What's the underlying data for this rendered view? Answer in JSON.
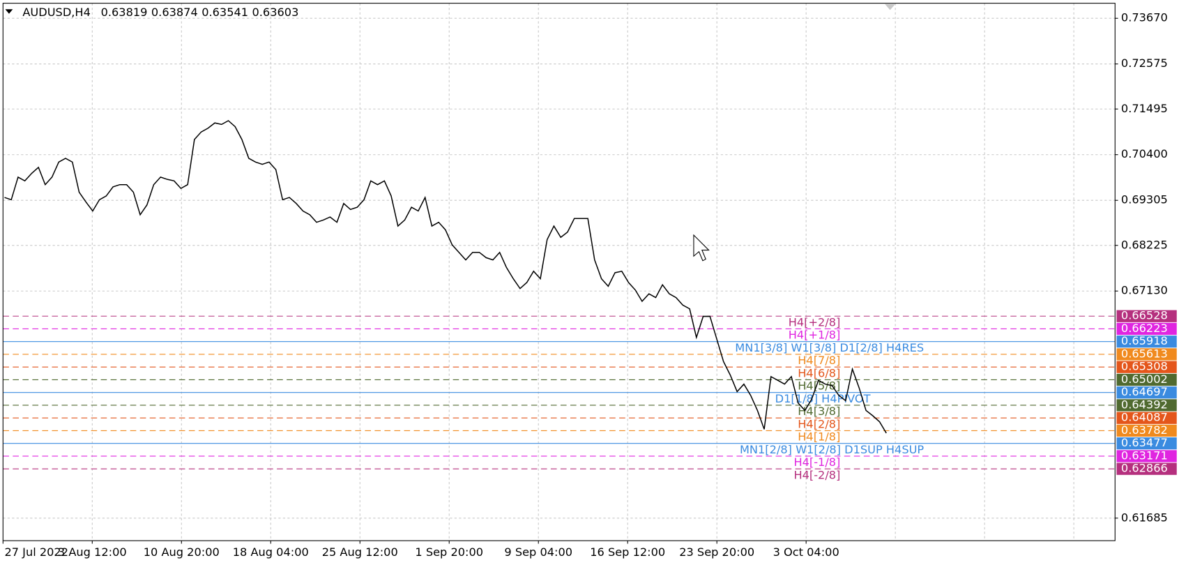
{
  "chart_data": {
    "type": "line",
    "symbol": "AUDUSD,H4",
    "ohlc": [
      0.63819,
      0.63874,
      0.63541,
      0.63603
    ],
    "color": "#000000",
    "values": [
      0.69374,
      0.6932,
      0.69861,
      0.69771,
      0.69952,
      0.70096,
      0.69681,
      0.69861,
      0.70222,
      0.70313,
      0.70222,
      0.695,
      0.69266,
      0.69049,
      0.6932,
      0.6941,
      0.69627,
      0.69681,
      0.69681,
      0.695,
      0.68959,
      0.69194,
      0.69681,
      0.69861,
      0.69807,
      0.69771,
      0.69591,
      0.69681,
      0.70764,
      0.70944,
      0.71035,
      0.71161,
      0.71125,
      0.71215,
      0.71071,
      0.70764,
      0.70313,
      0.70222,
      0.70168,
      0.70222,
      0.70042,
      0.6932,
      0.69374,
      0.6923,
      0.69049,
      0.68959,
      0.68778,
      0.68833,
      0.68905,
      0.68778,
      0.6923,
      0.69085,
      0.69139,
      0.6932,
      0.69771,
      0.69681,
      0.69771,
      0.6941,
      0.68688,
      0.68833,
      0.69139,
      0.69049,
      0.69374,
      0.68688,
      0.68778,
      0.68598,
      0.68237,
      0.68056,
      0.67876,
      0.68056,
      0.68056,
      0.6793,
      0.67876,
      0.68056,
      0.67695,
      0.67425,
      0.6719,
      0.67334,
      0.67605,
      0.67425,
      0.68363,
      0.68688,
      0.68417,
      0.68544,
      0.68869,
      0.68869,
      0.68869,
      0.67876,
      0.67425,
      0.67244,
      0.67569,
      0.67605,
      0.67334,
      0.67154,
      0.66883,
      0.67064,
      0.66973,
      0.6728,
      0.67064,
      0.66973,
      0.66793,
      0.66703,
      0.66017,
      0.66522,
      0.66522,
      0.65981,
      0.65439,
      0.65114,
      0.64717,
      0.64898,
      0.64627,
      0.64266,
      0.63815,
      0.65078,
      0.64988,
      0.64898,
      0.65078,
      0.64446,
      0.64266,
      0.64537,
      0.64988,
      0.64898,
      0.64862,
      0.64627,
      0.64501,
      0.65259,
      0.64807,
      0.64266,
      0.6414,
      0.63995,
      0.63724
    ],
    "x_labels": [
      "27 Jul 2022",
      "3 Aug 12:00",
      "10 Aug 20:00",
      "18 Aug 04:00",
      "25 Aug 12:00",
      "1 Sep 20:00",
      "9 Sep 04:00",
      "16 Sep 12:00",
      "23 Sep 20:00",
      "3 Oct 04:00"
    ],
    "ylim": [
      0.61144,
      0.74031
    ],
    "yticks": [
      {
        "value": 0.7367,
        "label": "0.73670"
      },
      0.72575,
      0.71495,
      {
        "value": 0.704,
        "label": "0.70400"
      },
      0.69305,
      0.68225,
      {
        "value": 0.6713,
        "label": "0.67130"
      },
      0.61685
    ],
    "grid": true,
    "levels": [
      {
        "label": "H4[+2/8]",
        "value": 0.66528,
        "color": "#b5307e",
        "style": "dashed"
      },
      {
        "label": "H4[+1/8]",
        "value": 0.66223,
        "color": "#e025e0",
        "style": "dashed"
      },
      {
        "label": "MN1[3/8] W1[3/8] D1[2/8] H4RES",
        "value": 0.65918,
        "color": "#3a8be0",
        "style": "solid"
      },
      {
        "label": "H4[7/8]",
        "value": 0.65613,
        "color": "#f08a1e",
        "style": "dashed"
      },
      {
        "label": "H4[6/8]",
        "value": 0.65308,
        "color": "#e4561b",
        "style": "dashed"
      },
      {
        "label": "H4[5/8]",
        "value": 0.65002,
        "color": "#506a30",
        "style": "dashed"
      },
      {
        "label": "D1[1/8] H4PIVOT",
        "value": 0.64697,
        "color": "#3a8be0",
        "style": "solid"
      },
      {
        "label": "H4[3/8]",
        "value": 0.64392,
        "color": "#506a30",
        "style": "dashed"
      },
      {
        "label": "H4[2/8]",
        "value": 0.64087,
        "color": "#e4561b",
        "style": "dashed"
      },
      {
        "label": "H4[1/8]",
        "value": 0.63782,
        "color": "#f08a1e",
        "style": "dashed"
      },
      {
        "label": "MN1[2/8] W1[2/8] D1SUP H4SUP",
        "value": 0.63477,
        "color": "#3a8be0",
        "style": "solid"
      },
      {
        "label": "H4[-1/8]",
        "value": 0.63171,
        "color": "#e025e0",
        "style": "dashed"
      },
      {
        "label": "H4[-2/8]",
        "value": 0.62866,
        "color": "#b5307e",
        "style": "dashed"
      }
    ]
  }
}
